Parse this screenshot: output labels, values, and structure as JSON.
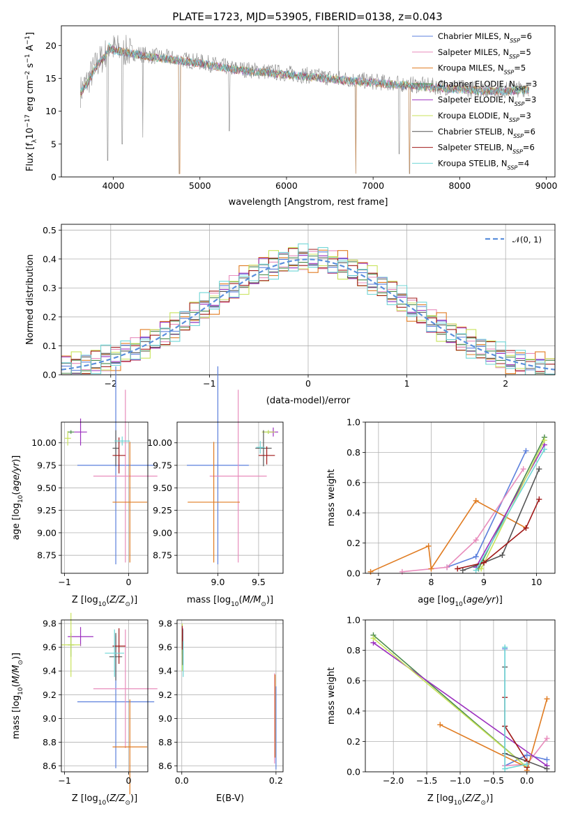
{
  "figure_title": "PLATE=1723, MJD=53905, FIBERID=0138, z=0.043",
  "colors": {
    "Chabrier MILES": "#5b7fdc",
    "Salpeter MILES": "#e88cbc",
    "Kroupa MILES": "#e07b20",
    "Chabrier ELODIE": "#4a8a4a",
    "Salpeter ELODIE": "#9b2fbf",
    "Kroupa ELODIE": "#c8e35a",
    "Chabrier STELIB": "#555555",
    "Salpeter STELIB": "#a01818",
    "Kroupa STELIB": "#6fd6d6",
    "normal": "#5b8fdc"
  },
  "chart_data": [
    {
      "type": "line",
      "id": "spectrum",
      "title": "PLATE=1723, MJD=53905, FIBERID=0138, z=0.043",
      "xlabel": "wavelength [Angstrom, rest frame]",
      "ylabel": "Flux [f",
      "xlim": [
        3400,
        9100
      ],
      "ylim": [
        0,
        23
      ],
      "xticks": [
        4000,
        5000,
        6000,
        7000,
        8000,
        9000
      ],
      "yticks": [
        0,
        5,
        10,
        15,
        20
      ],
      "grid": false,
      "legend": "top-right",
      "legend_entries": [
        {
          "model": "Chabrier MILES",
          "nssp": "6"
        },
        {
          "model": "Salpeter MILES",
          "nssp": "5"
        },
        {
          "model": "Kroupa MILES",
          "nssp": "5"
        },
        {
          "model": "Chabrier ELODIE",
          "nssp": "3"
        },
        {
          "model": "Salpeter ELODIE",
          "nssp": "3"
        },
        {
          "model": "Kroupa ELODIE",
          "nssp": "3"
        },
        {
          "model": "Chabrier STELIB",
          "nssp": "6"
        },
        {
          "model": "Salpeter STELIB",
          "nssp": "6"
        },
        {
          "model": "Kroupa STELIB",
          "nssp": "4"
        }
      ],
      "continuum": [
        [
          3620,
          13
        ],
        [
          3700,
          14.5
        ],
        [
          3800,
          17
        ],
        [
          3900,
          18.5
        ],
        [
          3950,
          20
        ],
        [
          4000,
          19.5
        ],
        [
          4200,
          19
        ],
        [
          4400,
          18.5
        ],
        [
          4700,
          18
        ],
        [
          5000,
          17.5
        ],
        [
          5400,
          16.5
        ],
        [
          5800,
          16
        ],
        [
          6200,
          15.5
        ],
        [
          6600,
          15
        ],
        [
          7000,
          14.5
        ],
        [
          7500,
          14
        ],
        [
          8000,
          13.5
        ],
        [
          8500,
          13.2
        ],
        [
          8800,
          13.5
        ]
      ],
      "absorption_features": [
        [
          3934,
          2.5
        ],
        [
          4101,
          5
        ],
        [
          4340,
          6
        ],
        [
          4764,
          0.5
        ],
        [
          5338,
          7
        ],
        [
          6800,
          0.5
        ],
        [
          7300,
          3.5
        ],
        [
          7420,
          0.5
        ]
      ],
      "noise_cutoff": 3620
    },
    {
      "type": "step",
      "id": "residuals",
      "xlabel": "(data-model)/error",
      "ylabel": "Normed distribution",
      "xlim": [
        -2.5,
        2.5
      ],
      "ylim": [
        0,
        0.52
      ],
      "xticks": [
        -2,
        -1,
        0,
        1,
        2
      ],
      "yticks": [
        0,
        0.1,
        0.2,
        0.3,
        0.4,
        0.5
      ],
      "grid": true,
      "legend": "top-right",
      "legend_label": "𝒩(0, 1)",
      "bin_width": 0.1,
      "bin_start": -2.5,
      "noise_pattern": [
        0.01,
        -0.015,
        0.02,
        -0.01,
        0.025,
        -0.02,
        0.012,
        -0.018,
        0.03,
        -0.025
      ]
    },
    {
      "type": "errorbar",
      "id": "age-vs-Z",
      "xlabel": "Z [log",
      "ylabel": "age  [log",
      "xlim": [
        -1.05,
        0.3
      ],
      "ylim": [
        8.55,
        10.23
      ],
      "xticks": [
        -1,
        0
      ],
      "yticks": [
        8.75,
        9.0,
        9.25,
        9.5,
        9.75,
        10.0
      ],
      "grid": true,
      "points": [
        {
          "model": "Chabrier MILES",
          "x": -0.2,
          "xerr": 0.6,
          "y": 9.75,
          "yerr": 1.1
        },
        {
          "model": "Salpeter MILES",
          "x": -0.05,
          "xerr": 0.5,
          "y": 9.63,
          "yerr": 0.96
        },
        {
          "model": "Kroupa MILES",
          "x": 0.02,
          "xerr": 0.27,
          "y": 9.34,
          "yerr": 0.67
        },
        {
          "model": "Chabrier ELODIE",
          "x": -0.9,
          "xerr": 0.05,
          "y": 10.12,
          "yerr": 0.02
        },
        {
          "model": "Salpeter ELODIE",
          "x": -0.75,
          "xerr": 0.1,
          "y": 10.12,
          "yerr": 0.15
        },
        {
          "model": "Kroupa ELODIE",
          "x": -0.95,
          "xerr": 0.05,
          "y": 10.05,
          "yerr": 0.08
        },
        {
          "model": "Chabrier STELIB",
          "x": -0.2,
          "xerr": 0.05,
          "y": 9.94,
          "yerr": 0.2
        },
        {
          "model": "Salpeter STELIB",
          "x": -0.15,
          "xerr": 0.1,
          "y": 9.86,
          "yerr": 0.2
        },
        {
          "model": "Kroupa STELIB",
          "x": -0.1,
          "xerr": 0.12,
          "y": 10.02,
          "yerr": 0.05
        }
      ]
    },
    {
      "type": "errorbar",
      "id": "age-vs-mass",
      "xlabel": "mass [log",
      "ylabel": "",
      "xlim": [
        8.5,
        9.8
      ],
      "ylim": [
        8.55,
        10.23
      ],
      "xticks": [
        9.0,
        9.5
      ],
      "yticks": [
        8.75,
        9.0,
        9.25,
        9.5,
        9.75,
        10.0
      ],
      "grid": true,
      "points": [
        {
          "model": "Chabrier MILES",
          "x": 9.0,
          "xerr": 0.38,
          "y": 9.75,
          "yerr": 1.1
        },
        {
          "model": "Salpeter MILES",
          "x": 9.25,
          "xerr": 0.35,
          "y": 9.63,
          "yerr": 0.96
        },
        {
          "model": "Kroupa MILES",
          "x": 8.95,
          "xerr": 0.32,
          "y": 9.34,
          "yerr": 0.67
        },
        {
          "model": "Chabrier ELODIE",
          "x": 9.62,
          "xerr": 0.07,
          "y": 10.12,
          "yerr": 0.02
        },
        {
          "model": "Salpeter ELODIE",
          "x": 9.68,
          "xerr": 0.06,
          "y": 10.12,
          "yerr": 0.05
        },
        {
          "model": "Kroupa ELODIE",
          "x": 9.62,
          "xerr": 0.08,
          "y": 10.12,
          "yerr": 0.02
        },
        {
          "model": "Chabrier STELIB",
          "x": 9.56,
          "xerr": 0.1,
          "y": 9.94,
          "yerr": 0.2
        },
        {
          "model": "Salpeter STELIB",
          "x": 9.6,
          "xerr": 0.1,
          "y": 9.86,
          "yerr": 0.1
        },
        {
          "model": "Kroupa STELIB",
          "x": 9.52,
          "xerr": 0.05,
          "y": 9.95,
          "yerr": 0.07
        }
      ]
    },
    {
      "type": "line",
      "id": "massweight-vs-age",
      "xlabel": "age  [log",
      "ylabel": "mass weight",
      "xlim": [
        6.75,
        10.35
      ],
      "ylim": [
        0,
        1.0
      ],
      "xticks": [
        7,
        8,
        9,
        10
      ],
      "yticks": [
        0,
        0.2,
        0.4,
        0.6,
        0.8,
        1.0
      ],
      "grid": true,
      "series": [
        {
          "model": "Chabrier MILES",
          "x": [
            8.3,
            8.85,
            9.8
          ],
          "y": [
            0.04,
            0.11,
            0.81
          ]
        },
        {
          "model": "Salpeter MILES",
          "x": [
            7.45,
            8.3,
            8.85,
            9.75
          ],
          "y": [
            0.01,
            0.04,
            0.22,
            0.69
          ]
        },
        {
          "model": "Kroupa MILES",
          "x": [
            6.85,
            7.95,
            8.0,
            8.85,
            9.8
          ],
          "y": [
            0.01,
            0.18,
            0.03,
            0.48,
            0.3
          ]
        },
        {
          "model": "Chabrier ELODIE",
          "x": [
            8.9,
            10.15
          ],
          "y": [
            0.03,
            0.9
          ]
        },
        {
          "model": "Salpeter ELODIE",
          "x": [
            8.85,
            10.15
          ],
          "y": [
            0.04,
            0.85
          ]
        },
        {
          "model": "Kroupa ELODIE",
          "x": [
            8.95,
            10.15
          ],
          "y": [
            0.03,
            0.88
          ]
        },
        {
          "model": "Chabrier STELIB",
          "x": [
            8.6,
            9.0,
            9.35,
            10.05
          ],
          "y": [
            0.02,
            0.07,
            0.12,
            0.69
          ]
        },
        {
          "model": "Salpeter STELIB",
          "x": [
            8.5,
            9.0,
            9.8,
            10.05
          ],
          "y": [
            0.03,
            0.07,
            0.3,
            0.49
          ]
        },
        {
          "model": "Kroupa STELIB",
          "x": [
            8.85,
            10.15
          ],
          "y": [
            0.02,
            0.82
          ]
        }
      ]
    },
    {
      "type": "errorbar",
      "id": "mass-vs-Z",
      "xlabel": "Z [log",
      "ylabel": "mass [log",
      "xlim": [
        -1.05,
        0.3
      ],
      "ylim": [
        8.55,
        9.83
      ],
      "xticks": [
        -1,
        0
      ],
      "yticks": [
        8.6,
        8.8,
        9.0,
        9.2,
        9.4,
        9.6,
        9.8
      ],
      "grid": true,
      "points": [
        {
          "model": "Chabrier MILES",
          "x": -0.2,
          "xerr": 0.6,
          "y": 9.14,
          "yerr": 0.56
        },
        {
          "model": "Salpeter MILES",
          "x": -0.05,
          "xerr": 0.5,
          "y": 9.25,
          "yerr": 0.5
        },
        {
          "model": "Kroupa MILES",
          "x": 0.02,
          "xerr": 0.27,
          "y": 8.76,
          "yerr": 0.4
        },
        {
          "model": "Chabrier ELODIE",
          "x": -0.9,
          "xerr": 0.05,
          "y": 9.62,
          "yerr": 0.1
        },
        {
          "model": "Salpeter ELODIE",
          "x": -0.75,
          "xerr": 0.2,
          "y": 9.69,
          "yerr": 0.08
        },
        {
          "model": "Kroupa ELODIE",
          "x": -0.9,
          "xerr": 0.15,
          "y": 9.62,
          "yerr": 0.27
        },
        {
          "model": "Chabrier STELIB",
          "x": -0.2,
          "xerr": 0.1,
          "y": 9.52,
          "yerr": 0.2
        },
        {
          "model": "Salpeter STELIB",
          "x": -0.15,
          "xerr": 0.1,
          "y": 9.61,
          "yerr": 0.15
        },
        {
          "model": "Kroupa STELIB",
          "x": -0.22,
          "xerr": 0.15,
          "y": 9.55,
          "yerr": 0.2
        }
      ]
    },
    {
      "type": "errorbar",
      "id": "mass-vs-ebv",
      "xlabel": "E(B-V)",
      "ylabel": "",
      "xlim": [
        -0.01,
        0.215
      ],
      "ylim": [
        8.55,
        9.83
      ],
      "xticks": [
        0.0,
        0.2
      ],
      "yticks": [
        8.6,
        8.8,
        9.0,
        9.2,
        9.4,
        9.6,
        9.8
      ],
      "grid": true,
      "points": [
        {
          "model": "Chabrier MILES",
          "x": 0.2,
          "xerr": 0.0,
          "y": 8.92,
          "yerr": 0.35
        },
        {
          "model": "Salpeter MILES",
          "x": 0.197,
          "xerr": 0.0,
          "y": 9.0,
          "yerr": 0.38
        },
        {
          "model": "Kroupa MILES",
          "x": 0.198,
          "xerr": 0.0,
          "y": 9.02,
          "yerr": 0.35
        },
        {
          "model": "Chabrier ELODIE",
          "x": 0.001,
          "xerr": 0.0,
          "y": 9.62,
          "yerr": 0.08
        },
        {
          "model": "Salpeter ELODIE",
          "x": 0.002,
          "xerr": 0.0,
          "y": 9.66,
          "yerr": 0.1
        },
        {
          "model": "Kroupa ELODIE",
          "x": 0.001,
          "xerr": 0.0,
          "y": 9.6,
          "yerr": 0.2
        },
        {
          "model": "Chabrier STELIB",
          "x": 0.002,
          "xerr": 0.0,
          "y": 9.6,
          "yerr": 0.15
        },
        {
          "model": "Salpeter STELIB",
          "x": 0.001,
          "xerr": 0.0,
          "y": 9.68,
          "yerr": 0.1
        },
        {
          "model": "Kroupa STELIB",
          "x": 0.003,
          "xerr": 0.0,
          "y": 9.5,
          "yerr": 0.15
        }
      ]
    },
    {
      "type": "line",
      "id": "massweight-vs-Z",
      "xlabel": "Z [log",
      "ylabel": "mass weight",
      "xlim": [
        -2.42,
        0.42
      ],
      "ylim": [
        0,
        1.0
      ],
      "xticks": [
        -2.0,
        -1.5,
        -1.0,
        -0.5,
        0.0
      ],
      "yticks": [
        0,
        0.2,
        0.4,
        0.6,
        0.8,
        1.0
      ],
      "grid": true,
      "series": [
        {
          "model": "Chabrier MILES",
          "x": [
            -0.33,
            -0.33,
            0.0,
            0.3
          ],
          "y": [
            0.81,
            0.04,
            0.11,
            0.08
          ]
        },
        {
          "model": "Salpeter MILES",
          "x": [
            -0.33,
            0.0,
            0.3
          ],
          "y": [
            0.04,
            0.05,
            0.22
          ]
        },
        {
          "model": "Kroupa MILES",
          "x": [
            -1.3,
            0.0,
            0.0,
            0.3
          ],
          "y": [
            0.31,
            0.03,
            0.01,
            0.48
          ]
        },
        {
          "model": "Chabrier ELODIE",
          "x": [
            -2.3,
            0.0
          ],
          "y": [
            0.9,
            0.03
          ]
        },
        {
          "model": "Salpeter ELODIE",
          "x": [
            -2.3,
            0.3
          ],
          "y": [
            0.85,
            0.04
          ]
        },
        {
          "model": "Kroupa ELODIE",
          "x": [
            -2.3,
            0.0
          ],
          "y": [
            0.88,
            0.03
          ]
        },
        {
          "model": "Chabrier STELIB",
          "x": [
            -0.33,
            -0.33,
            -0.33,
            0.0,
            0.3
          ],
          "y": [
            0.69,
            0.3,
            0.12,
            0.07,
            0.02
          ]
        },
        {
          "model": "Salpeter STELIB",
          "x": [
            -0.33,
            -0.33,
            0.0,
            0.0
          ],
          "y": [
            0.49,
            0.3,
            0.07,
            0.03
          ]
        },
        {
          "model": "Kroupa STELIB",
          "x": [
            -0.33,
            -0.33,
            0.0
          ],
          "y": [
            0.82,
            0.02,
            0.05
          ]
        }
      ]
    }
  ]
}
